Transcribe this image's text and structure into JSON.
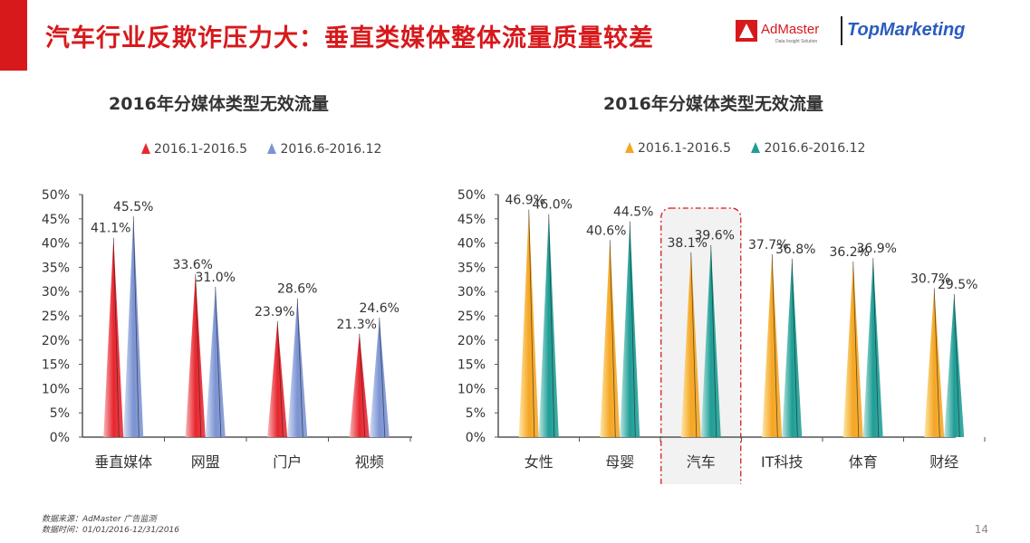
{
  "header": {
    "title": "汽车行业反欺诈压力大：垂直类媒体整体流量质量较差",
    "logo_admaster": "AdMaster",
    "logo_admaster_sub": "Data Insight Solution",
    "logo_topmarketing": "TopMarketing"
  },
  "colors": {
    "brand_red": "#d7191c",
    "series_red": "#e8262f",
    "series_blue": "#7b93d3",
    "series_orange": "#f5a623",
    "series_teal": "#1e9e96"
  },
  "chart_data": [
    {
      "type": "bar",
      "title": "2016年分媒体类型无效流量",
      "categories": [
        "垂直媒体",
        "网盟",
        "门户",
        "视频"
      ],
      "series": [
        {
          "name": "2016.1-2016.5",
          "values": [
            41.1,
            33.6,
            23.9,
            21.3
          ],
          "labels": [
            "41.1%",
            "33.6%",
            "23.9%",
            "21.3%"
          ]
        },
        {
          "name": "2016.6-2016.12",
          "values": [
            45.5,
            31.0,
            28.6,
            24.6
          ],
          "labels": [
            "45.5%",
            "31.0%",
            "28.6%",
            "24.6%"
          ]
        }
      ],
      "yticks": [
        "0%",
        "5%",
        "10%",
        "15%",
        "20%",
        "25%",
        "30%",
        "35%",
        "40%",
        "45%",
        "50%"
      ],
      "ylim": [
        0,
        50
      ],
      "legend": "top"
    },
    {
      "type": "bar",
      "title": "2016年分媒体类型无效流量",
      "categories": [
        "女性",
        "母婴",
        "汽车",
        "IT科技",
        "体育",
        "财经"
      ],
      "series": [
        {
          "name": "2016.1-2016.5",
          "values": [
            46.9,
            40.6,
            38.1,
            37.7,
            36.2,
            30.7
          ],
          "labels": [
            "46.9%",
            "40.6%",
            "38.1%",
            "37.7%",
            "36.2%",
            "30.7%"
          ]
        },
        {
          "name": "2016.6-2016.12",
          "values": [
            46.0,
            44.5,
            39.6,
            36.8,
            36.9,
            29.5
          ],
          "labels": [
            "46.0%",
            "44.5%",
            "39.6%",
            "36.8%",
            "36.9%",
            "29.5%"
          ]
        }
      ],
      "yticks": [
        "0%",
        "5%",
        "10%",
        "15%",
        "20%",
        "25%",
        "30%",
        "35%",
        "40%",
        "45%",
        "50%"
      ],
      "ylim": [
        0,
        50
      ],
      "highlight_category": "汽车",
      "legend": "top"
    }
  ],
  "footer": {
    "source": "数据来源：AdMaster 广告监测",
    "period": "数据时间：01/01/2016-12/31/2016",
    "page_number": "14"
  }
}
